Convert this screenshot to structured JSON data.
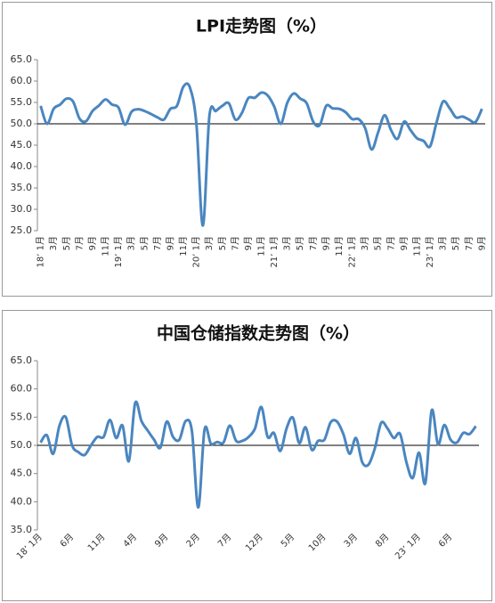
{
  "chart_data": [
    {
      "type": "line",
      "title": "LPI走势图（%）",
      "color": "#4a86c0",
      "xaxis_at": 50,
      "ylim": [
        25,
        65
      ],
      "yticks": [
        {
          "value": 25,
          "label": "25.0"
        },
        {
          "value": 30,
          "label": "30.0"
        },
        {
          "value": 35,
          "label": "35.0"
        },
        {
          "value": 40,
          "label": "40.0"
        },
        {
          "value": 45,
          "label": "45.0"
        },
        {
          "value": 50,
          "label": "50.0"
        },
        {
          "value": 55,
          "label": "55.0"
        },
        {
          "value": 60,
          "label": "60.0"
        },
        {
          "value": 65,
          "label": "65.0"
        }
      ],
      "categories": [
        "18’ 1月",
        null,
        "3月",
        null,
        "5月",
        null,
        "7月",
        null,
        "9月",
        null,
        "11月",
        null,
        "19’ 1月",
        null,
        "3月",
        null,
        "5月",
        null,
        "7月",
        null,
        "9月",
        null,
        "11月",
        null,
        "20’ 1月",
        null,
        "3月",
        null,
        "5月",
        null,
        "7月",
        null,
        "9月",
        null,
        "11月",
        null,
        "21’ 1月",
        null,
        "3月",
        null,
        "5月",
        null,
        "7月",
        null,
        "9月",
        null,
        "11月",
        null,
        "22’ 1月",
        null,
        "3月",
        null,
        "5月",
        null,
        "7月",
        null,
        "9月",
        null,
        "11月",
        null,
        "23’ 1月",
        null,
        "3月",
        null,
        "5月",
        null,
        "7月",
        null,
        "9月"
      ],
      "values": [
        54.2,
        50.0,
        53.5,
        54.5,
        55.9,
        55.2,
        51.2,
        50.6,
        53.0,
        54.3,
        55.7,
        54.5,
        53.8,
        49.8,
        52.8,
        53.4,
        53.0,
        52.3,
        51.5,
        51.0,
        53.5,
        54.2,
        58.7,
        58.5,
        50.0,
        26.2,
        51.8,
        53.0,
        54.2,
        54.8,
        51.0,
        52.5,
        56.0,
        56.1,
        57.3,
        56.6,
        54.0,
        50.0,
        54.9,
        57.1,
        55.9,
        54.8,
        50.5,
        49.7,
        54.2,
        53.6,
        53.5,
        52.7,
        51.1,
        51.1,
        49.0,
        44.0,
        48.0,
        52.0,
        48.5,
        46.5,
        50.5,
        48.5,
        46.6,
        46.0,
        44.7,
        50.3,
        55.2,
        53.7,
        51.5,
        51.7,
        51.0,
        50.4,
        53.5
      ]
    },
    {
      "type": "line",
      "title": "中国仓储指数走势图（%）",
      "color": "#4a86c0",
      "xaxis_at": 50,
      "ylim": [
        35,
        65
      ],
      "yticks": [
        {
          "value": 35,
          "label": "35.0"
        },
        {
          "value": 40,
          "label": "40.0"
        },
        {
          "value": 45,
          "label": "45.0"
        },
        {
          "value": 50,
          "label": "50.0"
        },
        {
          "value": 55,
          "label": "55.0"
        },
        {
          "value": 60,
          "label": "60.0"
        },
        {
          "value": 65,
          "label": "65.0"
        }
      ],
      "categories": [
        "18’ 1月",
        null,
        null,
        null,
        null,
        "6月",
        null,
        null,
        null,
        null,
        "11月",
        null,
        null,
        null,
        null,
        "4月",
        null,
        null,
        null,
        null,
        "9月",
        null,
        null,
        null,
        null,
        "2月",
        null,
        null,
        null,
        null,
        "7月",
        null,
        null,
        null,
        null,
        "12月",
        null,
        null,
        null,
        null,
        "5月",
        null,
        null,
        null,
        null,
        "10月",
        null,
        null,
        null,
        null,
        "3月",
        null,
        null,
        null,
        null,
        "8月",
        null,
        null,
        null,
        null,
        "23’ 1月",
        null,
        null,
        null,
        null,
        "6月",
        null,
        null,
        null,
        null
      ],
      "values": [
        50.5,
        51.8,
        48.5,
        53.5,
        55.0,
        50.0,
        48.8,
        48.3,
        50.0,
        51.5,
        51.5,
        54.5,
        51.3,
        53.5,
        47.2,
        57.5,
        54.3,
        52.6,
        51.0,
        49.6,
        54.2,
        51.5,
        51.0,
        54.3,
        52.5,
        39.0,
        52.8,
        50.3,
        50.6,
        50.5,
        53.5,
        50.8,
        50.8,
        51.5,
        53.0,
        56.8,
        51.5,
        52.2,
        49.0,
        53.0,
        54.9,
        50.4,
        53.2,
        49.2,
        50.8,
        51.0,
        54.1,
        54.2,
        52.0,
        48.5,
        51.3,
        47.0,
        46.6,
        49.5,
        54.0,
        53.0,
        51.3,
        52.0,
        47.0,
        44.2,
        48.7,
        43.3,
        56.2,
        50.2,
        53.6,
        51.0,
        50.5,
        52.2,
        52.0,
        53.4
      ]
    }
  ]
}
